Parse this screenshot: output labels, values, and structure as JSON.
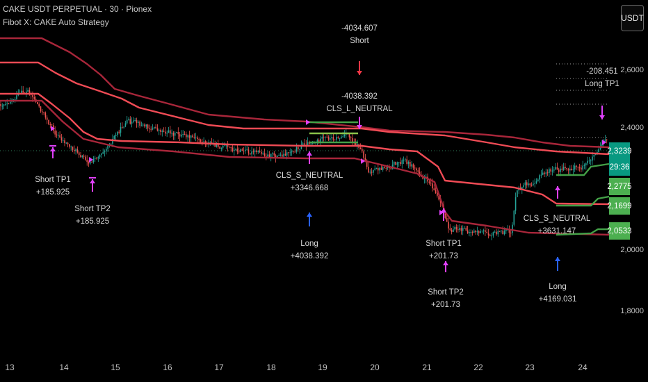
{
  "header": {
    "symbol_line": "CAKE USDT PERPETUAL · 30 · Pionex",
    "strategy_line": "Fibot X: CAKE Auto Strategy"
  },
  "currency_button": "USDT",
  "y_axis": {
    "ticks": [
      "2,6000",
      "2,4000",
      "2,0000",
      "1,8000"
    ]
  },
  "x_axis": {
    "ticks": [
      "13",
      "14",
      "15",
      "16",
      "17",
      "18",
      "19",
      "20",
      "21",
      "22",
      "23",
      "24"
    ]
  },
  "price_tags": [
    {
      "value": "2,3239",
      "color": "#089981",
      "kind": "last"
    },
    {
      "value": "29:36",
      "color": "#089981",
      "kind": "countdown"
    },
    {
      "value": "2,2775",
      "color": "#4caf50",
      "kind": "level"
    },
    {
      "value": "2,1699",
      "color": "#4caf50",
      "kind": "level"
    },
    {
      "value": "2,0533",
      "color": "#4caf50",
      "kind": "level"
    }
  ],
  "annotations": {
    "short_tp1_a": {
      "label": "Short TP1",
      "value": "+185.925"
    },
    "short_tp2_a": {
      "label": "Short TP2",
      "value": "+185.925"
    },
    "short_entry": {
      "value": "-4034.607",
      "label": "Short"
    },
    "cls_l_neutral": {
      "value": "-4038.392",
      "label": "CLS_L_NEUTRAL"
    },
    "cls_s_neutral_a": {
      "label": "CLS_S_NEUTRAL",
      "value": "+3346.668"
    },
    "long_a": {
      "label": "Long",
      "value": "+4038.392"
    },
    "short_tp1_b": {
      "label": "Short TP1",
      "value": "+201.73"
    },
    "short_tp2_b": {
      "label": "Short TP2",
      "value": "+201.73"
    },
    "cls_s_neutral_b": {
      "label": "CLS_S_NEUTRAL",
      "value": "+3631.147"
    },
    "long_b": {
      "label": "Long",
      "value": "+4169.031"
    },
    "long_tp1": {
      "value": "-208.451",
      "label": "Long TP1"
    }
  },
  "colors": {
    "background": "#000000",
    "bull_candle": "#26a69a",
    "bear_candle": "#ef5350",
    "dark_red_band": "#a8263a",
    "red_band": "#f04b55",
    "green_band": "#43a047",
    "signal_magenta": "#e040fb",
    "signal_blue": "#2962ff",
    "signal_red": "#f23645"
  }
}
